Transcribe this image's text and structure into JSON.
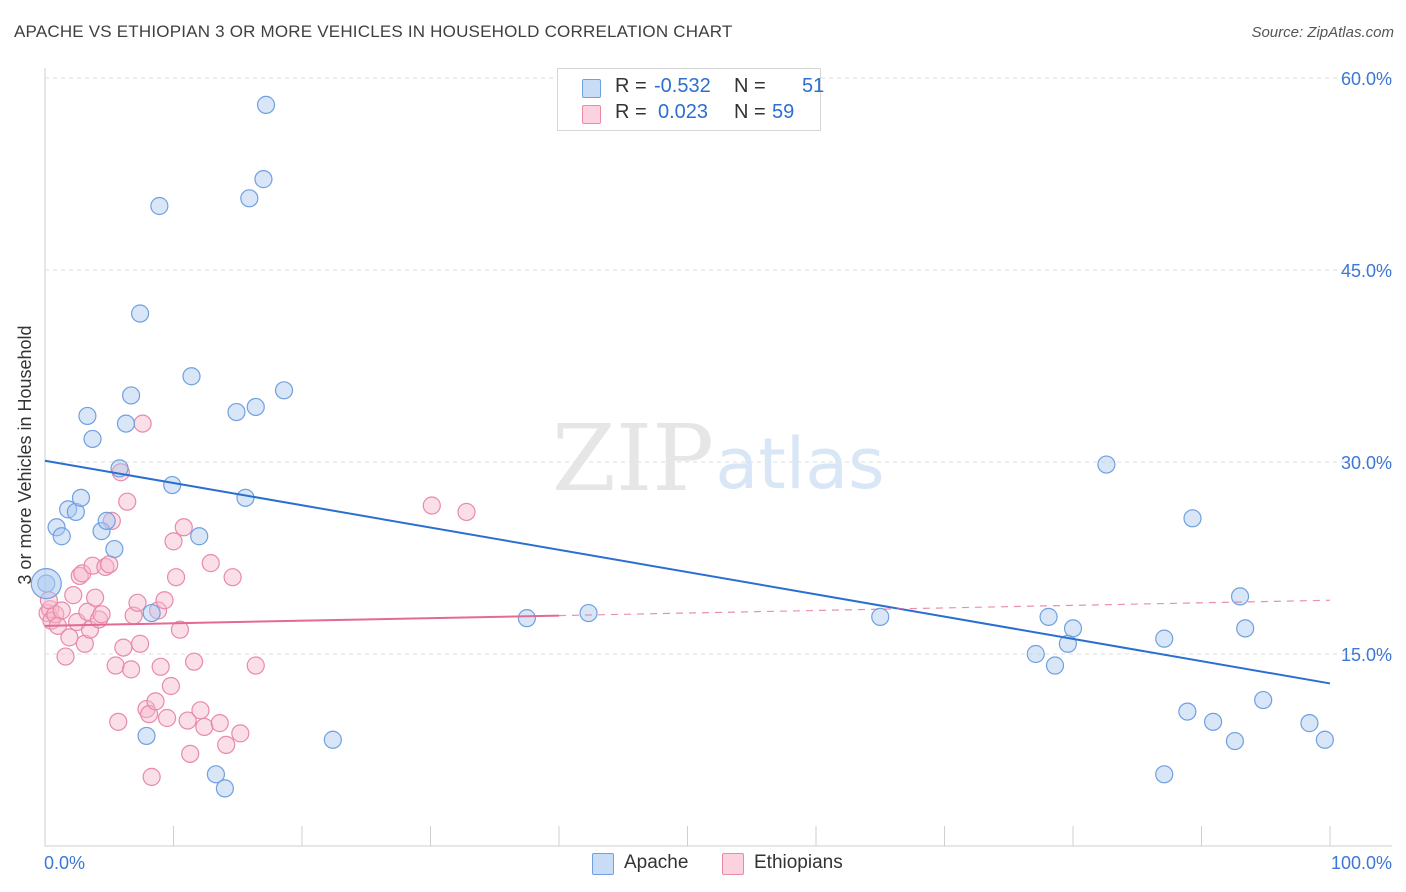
{
  "title": "APACHE VS ETHIOPIAN 3 OR MORE VEHICLES IN HOUSEHOLD CORRELATION CHART",
  "source": "Source: ZipAtlas.com",
  "watermark": {
    "zip": "ZIP",
    "atlas": "atlas"
  },
  "legend_top": {
    "rows": [
      {
        "r_label": "R =",
        "r_value": "-0.532",
        "n_label": "N =",
        "n_value": "51",
        "color": "#a9c8f0"
      },
      {
        "r_label": "R =",
        "r_value": "0.023",
        "n_label": "N =",
        "n_value": "59",
        "color": "#f7b8cb"
      }
    ]
  },
  "legend_bottom": [
    {
      "label": "Apache",
      "color": "#a9c8f0"
    },
    {
      "label": "Ethiopians",
      "color": "#f7b8cb"
    }
  ],
  "chart_data": {
    "type": "scatter",
    "title": "APACHE VS ETHIOPIAN 3 OR MORE VEHICLES IN HOUSEHOLD CORRELATION CHART",
    "xlabel": "",
    "ylabel": "3 or more Vehicles in Household",
    "xlim": [
      0,
      100
    ],
    "ylim": [
      0,
      60
    ],
    "x_tick_labels": [
      "0.0%",
      "100.0%"
    ],
    "y_tick_labels": [
      "15.0%",
      "30.0%",
      "45.0%",
      "60.0%"
    ],
    "y_ticks": [
      15,
      30,
      45,
      60
    ],
    "grid": true,
    "legend_position": "top-center",
    "series": [
      {
        "name": "Apache",
        "color": "#6fa0e0",
        "fill": "#a9c8f0",
        "trend": {
          "x": [
            0,
            100
          ],
          "y": [
            30.1,
            12.7
          ],
          "style": "solid",
          "color": "#2a6fd0"
        },
        "points": [
          [
            0.1,
            20.5
          ],
          [
            0.9,
            24.9
          ],
          [
            1.3,
            24.2
          ],
          [
            1.8,
            26.3
          ],
          [
            2.4,
            26.1
          ],
          [
            2.8,
            27.2
          ],
          [
            3.3,
            33.6
          ],
          [
            3.7,
            31.8
          ],
          [
            4.4,
            24.6
          ],
          [
            4.8,
            25.4
          ],
          [
            5.4,
            23.2
          ],
          [
            5.8,
            29.5
          ],
          [
            6.3,
            33.0
          ],
          [
            6.7,
            35.2
          ],
          [
            7.4,
            41.6
          ],
          [
            7.9,
            8.6
          ],
          [
            8.3,
            18.2
          ],
          [
            8.9,
            50.0
          ],
          [
            9.9,
            28.2
          ],
          [
            11.4,
            36.7
          ],
          [
            12.0,
            24.2
          ],
          [
            13.3,
            5.6
          ],
          [
            14.0,
            4.5
          ],
          [
            14.9,
            33.9
          ],
          [
            15.6,
            27.2
          ],
          [
            15.9,
            50.6
          ],
          [
            16.4,
            34.3
          ],
          [
            17.0,
            52.1
          ],
          [
            17.2,
            57.9
          ],
          [
            18.6,
            35.6
          ],
          [
            22.4,
            8.3
          ],
          [
            37.5,
            17.8
          ],
          [
            42.3,
            18.2
          ],
          [
            65.0,
            17.9
          ],
          [
            77.1,
            15.0
          ],
          [
            78.1,
            17.9
          ],
          [
            78.6,
            14.1
          ],
          [
            79.6,
            15.8
          ],
          [
            80.0,
            17.0
          ],
          [
            82.6,
            29.8
          ],
          [
            87.1,
            16.2
          ],
          [
            87.1,
            5.6
          ],
          [
            88.9,
            10.5
          ],
          [
            89.3,
            25.6
          ],
          [
            90.9,
            9.7
          ],
          [
            92.6,
            8.2
          ],
          [
            93.0,
            19.5
          ],
          [
            93.4,
            17.0
          ],
          [
            94.8,
            11.4
          ],
          [
            98.4,
            9.6
          ],
          [
            99.6,
            8.3
          ]
        ]
      },
      {
        "name": "Ethiopians",
        "color": "#e88aa8",
        "fill": "#f7b8cb",
        "trend": {
          "x": [
            0,
            40
          ],
          "y": [
            17.2,
            18.0
          ],
          "style": "solid",
          "color": "#e36a93",
          "dashed_extension": {
            "x": [
              40,
              100
            ],
            "y": [
              18.0,
              19.2
            ]
          }
        },
        "points": [
          [
            0.2,
            18.2
          ],
          [
            0.4,
            18.5
          ],
          [
            0.5,
            17.6
          ],
          [
            0.8,
            18.1
          ],
          [
            1.0,
            17.2
          ],
          [
            1.3,
            18.4
          ],
          [
            1.6,
            14.8
          ],
          [
            1.9,
            16.3
          ],
          [
            2.2,
            19.6
          ],
          [
            2.5,
            17.5
          ],
          [
            2.7,
            21.1
          ],
          [
            2.9,
            21.3
          ],
          [
            3.1,
            15.8
          ],
          [
            3.3,
            18.3
          ],
          [
            3.5,
            16.9
          ],
          [
            3.7,
            21.9
          ],
          [
            3.9,
            19.4
          ],
          [
            4.2,
            17.7
          ],
          [
            4.4,
            18.1
          ],
          [
            4.7,
            21.8
          ],
          [
            5.0,
            22.0
          ],
          [
            5.2,
            25.4
          ],
          [
            5.5,
            14.1
          ],
          [
            5.7,
            9.7
          ],
          [
            5.9,
            29.2
          ],
          [
            6.1,
            15.5
          ],
          [
            6.4,
            26.9
          ],
          [
            6.7,
            13.8
          ],
          [
            6.9,
            18.0
          ],
          [
            7.2,
            19.0
          ],
          [
            7.4,
            15.8
          ],
          [
            7.6,
            33.0
          ],
          [
            7.9,
            10.7
          ],
          [
            8.1,
            10.3
          ],
          [
            8.3,
            5.4
          ],
          [
            8.6,
            11.3
          ],
          [
            8.8,
            18.4
          ],
          [
            9.0,
            14.0
          ],
          [
            9.3,
            19.2
          ],
          [
            9.5,
            10.0
          ],
          [
            9.8,
            12.5
          ],
          [
            10.0,
            23.8
          ],
          [
            10.2,
            21.0
          ],
          [
            10.5,
            16.9
          ],
          [
            10.8,
            24.9
          ],
          [
            11.1,
            9.8
          ],
          [
            11.3,
            7.2
          ],
          [
            11.6,
            14.4
          ],
          [
            12.1,
            10.6
          ],
          [
            12.4,
            9.3
          ],
          [
            12.9,
            22.1
          ],
          [
            13.6,
            9.6
          ],
          [
            14.1,
            7.9
          ],
          [
            14.6,
            21.0
          ],
          [
            15.2,
            8.8
          ],
          [
            16.4,
            14.1
          ],
          [
            30.1,
            26.6
          ],
          [
            32.8,
            26.1
          ],
          [
            0.3,
            19.2
          ]
        ]
      }
    ]
  }
}
